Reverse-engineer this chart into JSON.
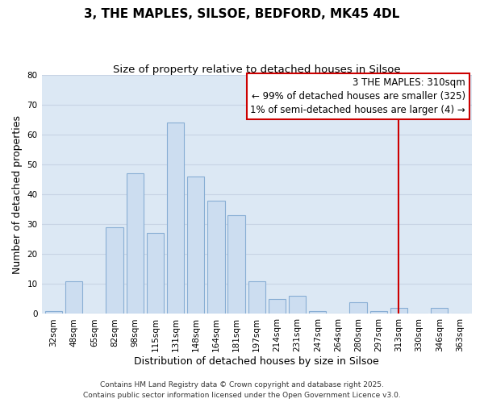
{
  "title": "3, THE MAPLES, SILSOE, BEDFORD, MK45 4DL",
  "subtitle": "Size of property relative to detached houses in Silsoe",
  "xlabel": "Distribution of detached houses by size in Silsoe",
  "ylabel": "Number of detached properties",
  "bin_labels": [
    "32sqm",
    "48sqm",
    "65sqm",
    "82sqm",
    "98sqm",
    "115sqm",
    "131sqm",
    "148sqm",
    "164sqm",
    "181sqm",
    "197sqm",
    "214sqm",
    "231sqm",
    "247sqm",
    "264sqm",
    "280sqm",
    "297sqm",
    "313sqm",
    "330sqm",
    "346sqm",
    "363sqm"
  ],
  "bar_heights": [
    1,
    11,
    0,
    29,
    47,
    27,
    64,
    46,
    38,
    33,
    11,
    5,
    6,
    1,
    0,
    4,
    1,
    2,
    0,
    2,
    0
  ],
  "bar_color": "#ccddf0",
  "bar_edge_color": "#88aed4",
  "grid_color": "#c8d4e4",
  "background_color": "#ffffff",
  "plot_background_color": "#dce8f4",
  "ylim": [
    0,
    80
  ],
  "yticks": [
    0,
    10,
    20,
    30,
    40,
    50,
    60,
    70,
    80
  ],
  "vline_x_index": 17,
  "vline_color": "#cc0000",
  "legend_title": "3 THE MAPLES: 310sqm",
  "legend_line1": "← 99% of detached houses are smaller (325)",
  "legend_line2": "1% of semi-detached houses are larger (4) →",
  "legend_box_color": "#cc0000",
  "footer_line1": "Contains HM Land Registry data © Crown copyright and database right 2025.",
  "footer_line2": "Contains public sector information licensed under the Open Government Licence v3.0.",
  "title_fontsize": 11,
  "subtitle_fontsize": 9.5,
  "axis_label_fontsize": 9,
  "tick_fontsize": 7.5,
  "footer_fontsize": 6.5,
  "legend_fontsize": 8.5
}
